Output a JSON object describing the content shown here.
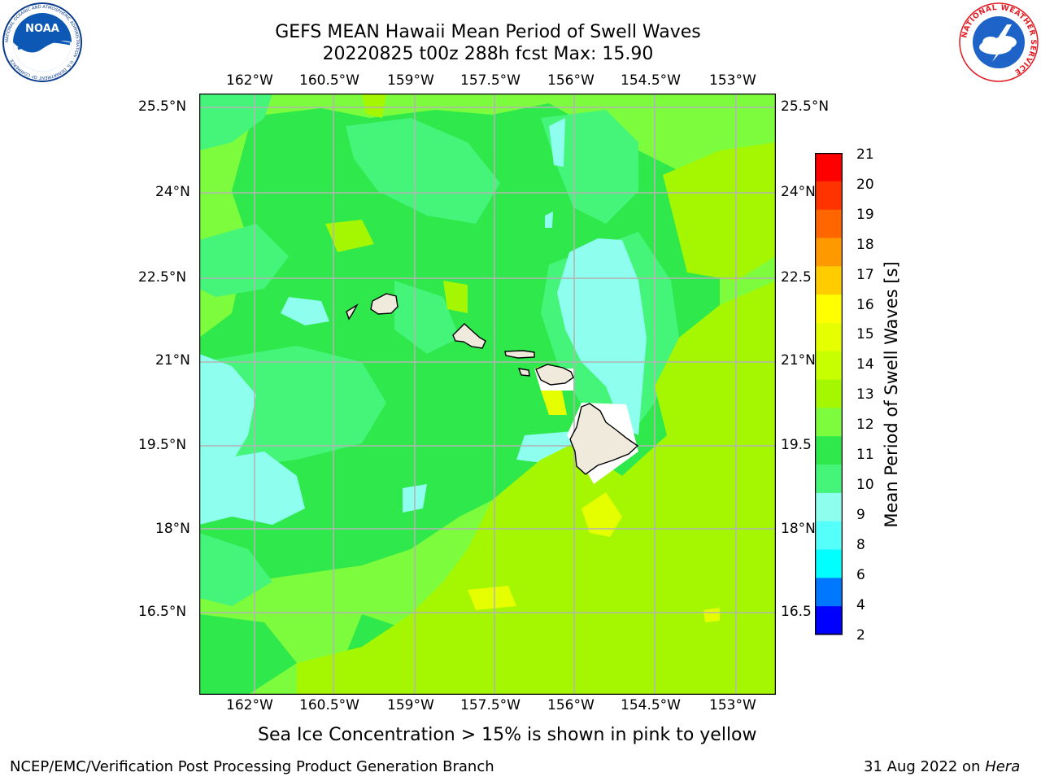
{
  "header": {
    "title_line1": "GEFS MEAN Hawaii Mean Period of Swell Waves",
    "title_line2": "20220825 t00z 288h fcst   Max: 15.90"
  },
  "logos": {
    "left": {
      "name": "noaa-logo",
      "text": "NOAA",
      "ring_text": "NATIONAL OCEANIC AND ATMOSPHERIC ADMINISTRATION · U.S. DEPARTMENT OF COMMERCE"
    },
    "right": {
      "name": "nws-logo",
      "ring_text": "NATIONAL WEATHER SERVICE"
    }
  },
  "map": {
    "lon_labels": [
      "162°W",
      "160.5°W",
      "159°W",
      "157.5°W",
      "156°W",
      "154.5°W",
      "153°W"
    ],
    "lat_labels": [
      "25.5°N",
      "24°N",
      "22.5°N",
      "21°N",
      "19.5°N",
      "18°N",
      "16.5°N"
    ],
    "lat_labels_right": [
      "25.5°N",
      "24°N",
      "22.5",
      "21°N",
      "19.5",
      "18°N",
      "16.5"
    ],
    "colors": {
      "base": "#7cfc3c",
      "green": "#2ee84c",
      "lightgreen": "#45f57a",
      "aqua": "#8effee",
      "yellowgreen": "#a4f700",
      "yellow": "#e6ff00",
      "land": "#efeadb",
      "grid": "#b4b4b4"
    }
  },
  "colorbar": {
    "label": "Mean Period of Swell Waves [s]",
    "ticks": [
      "21",
      "20",
      "19",
      "18",
      "17",
      "16",
      "15",
      "14",
      "13",
      "12",
      "11",
      "10",
      "9",
      "8",
      "6",
      "4",
      "2"
    ],
    "colors": [
      "#ff0000",
      "#ff3300",
      "#ff6600",
      "#ff9900",
      "#ffcc00",
      "#ffff00",
      "#e5ff00",
      "#c8ff00",
      "#a4f700",
      "#7cfc3c",
      "#2ee84c",
      "#45f57a",
      "#8effee",
      "#55fffa",
      "#00ffff",
      "#0077ff",
      "#0000ff"
    ]
  },
  "notes": {
    "sea_ice": "Sea Ice Concentration > 15% is shown in pink to yellow"
  },
  "footer": {
    "left": "NCEP/EMC/Verification Post Processing Product Generation Branch",
    "right_date": "31 Aug 2022 on",
    "right_host": "Hera"
  }
}
